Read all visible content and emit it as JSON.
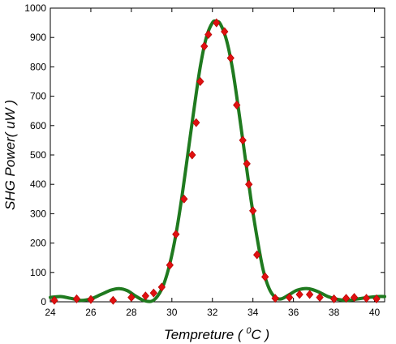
{
  "chart_data": {
    "type": "scatter",
    "title": "",
    "xlabel_main": "Tempreture (",
    "xlabel_sup": "0",
    "xlabel_unit": "C )",
    "ylabel": "SHG Power( uW )",
    "xlim": [
      24,
      40.5
    ],
    "ylim": [
      0,
      1000
    ],
    "xticks": [
      24,
      26,
      28,
      30,
      32,
      34,
      36,
      38,
      40
    ],
    "yticks": [
      0,
      100,
      200,
      300,
      400,
      500,
      600,
      700,
      800,
      900,
      1000
    ],
    "grid": false,
    "series": [
      {
        "kind": "line",
        "color": "#1f7a1f",
        "x": [
          24.0,
          24.5,
          25.0,
          25.5,
          26.0,
          26.5,
          27.0,
          27.4,
          27.8,
          28.2,
          28.6,
          29.0,
          29.3,
          29.6,
          29.9,
          30.2,
          30.5,
          30.8,
          31.1,
          31.4,
          31.7,
          32.0,
          32.2,
          32.4,
          32.7,
          33.0,
          33.3,
          33.6,
          33.9,
          34.2,
          34.5,
          34.8,
          35.1,
          35.4,
          35.8,
          36.2,
          36.7,
          37.2,
          37.7,
          38.2,
          38.7,
          39.2,
          39.7,
          40.2,
          40.5
        ],
        "y": [
          15,
          18,
          12,
          5,
          10,
          25,
          40,
          45,
          38,
          20,
          5,
          2,
          20,
          60,
          130,
          230,
          360,
          510,
          660,
          800,
          900,
          950,
          955,
          945,
          890,
          790,
          650,
          500,
          350,
          220,
          110,
          45,
          15,
          10,
          25,
          40,
          45,
          35,
          18,
          8,
          5,
          10,
          15,
          18,
          18
        ]
      },
      {
        "kind": "points",
        "color": "#e01010",
        "x": [
          24.2,
          25.3,
          26.0,
          27.1,
          28.0,
          28.7,
          29.1,
          29.5,
          29.9,
          30.2,
          30.6,
          31.0,
          31.2,
          31.4,
          31.6,
          31.8,
          32.2,
          32.6,
          32.9,
          33.2,
          33.5,
          33.7,
          33.8,
          34.0,
          34.2,
          34.6,
          35.1,
          35.8,
          36.3,
          36.8,
          37.3,
          38.0,
          38.6,
          39.0,
          39.6,
          40.1
        ],
        "y": [
          5,
          10,
          8,
          5,
          15,
          20,
          30,
          50,
          125,
          230,
          350,
          500,
          610,
          750,
          870,
          910,
          950,
          920,
          830,
          670,
          550,
          470,
          400,
          310,
          160,
          85,
          12,
          15,
          25,
          25,
          15,
          10,
          12,
          15,
          12,
          10
        ]
      }
    ]
  }
}
